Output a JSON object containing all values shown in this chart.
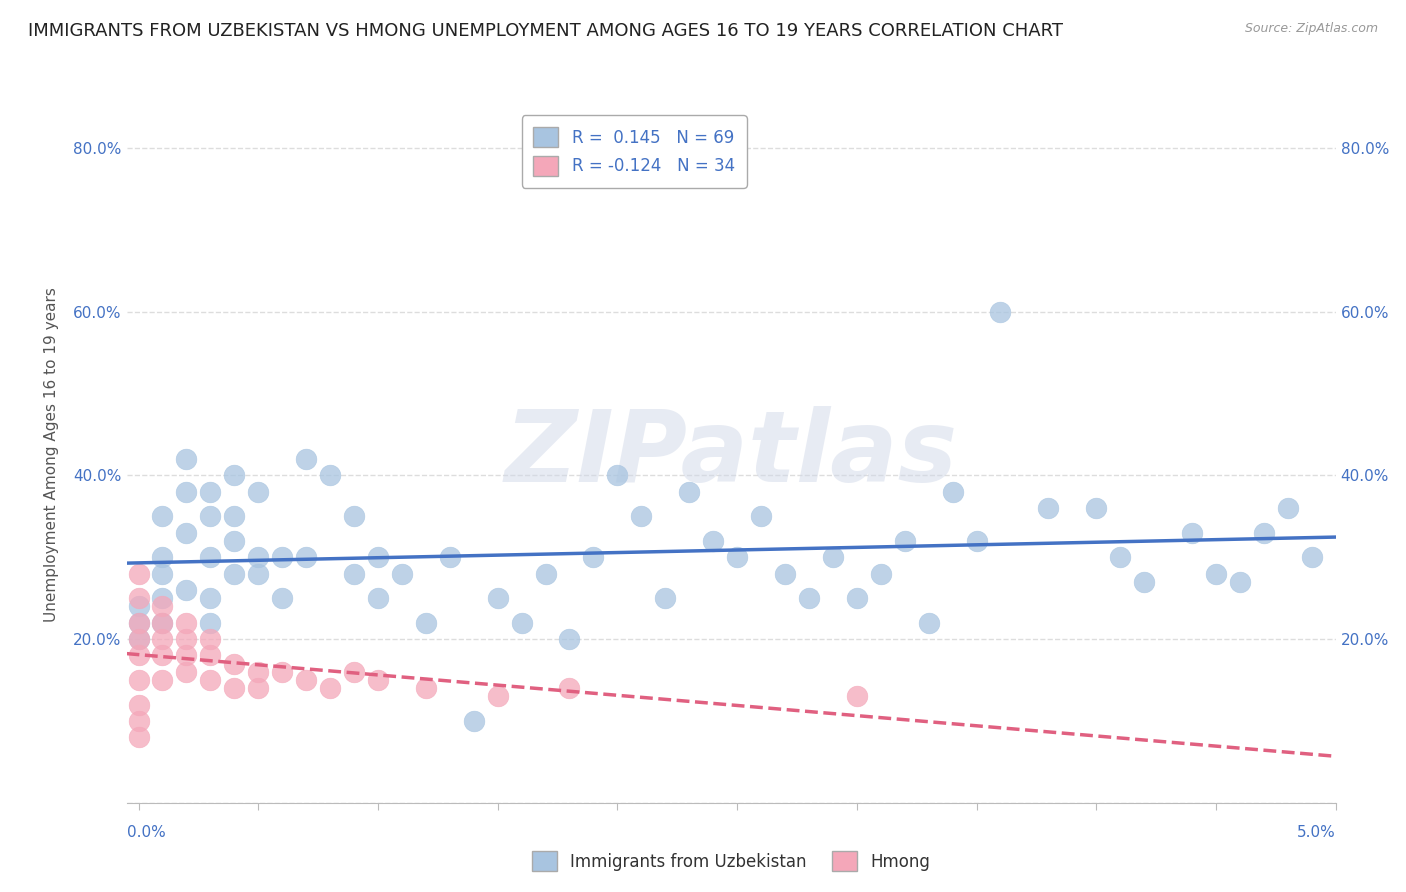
{
  "title": "IMMIGRANTS FROM UZBEKISTAN VS HMONG UNEMPLOYMENT AMONG AGES 16 TO 19 YEARS CORRELATION CHART",
  "source": "Source: ZipAtlas.com",
  "ylabel": "Unemployment Among Ages 16 to 19 years",
  "series": [
    {
      "label": "Immigrants from Uzbekistan",
      "R": 0.145,
      "N": 69,
      "color": "#a8c4e0",
      "line_color": "#4472c4",
      "x": [
        0.001,
        0.001,
        0.001,
        0.001,
        0.002,
        0.002,
        0.002,
        0.003,
        0.003,
        0.003,
        0.003,
        0.004,
        0.004,
        0.004,
        0.004,
        0.005,
        0.005,
        0.005,
        0.006,
        0.006,
        0.007,
        0.007,
        0.008,
        0.009,
        0.009,
        0.01,
        0.01,
        0.011,
        0.012,
        0.013,
        0.014,
        0.015,
        0.016,
        0.017,
        0.018,
        0.019,
        0.02,
        0.021,
        0.022,
        0.023,
        0.024,
        0.025,
        0.026,
        0.027,
        0.028,
        0.029,
        0.03,
        0.031,
        0.032,
        0.033,
        0.034,
        0.035,
        0.036,
        0.038,
        0.04,
        0.041,
        0.042,
        0.044,
        0.045,
        0.046,
        0.047,
        0.048,
        0.049,
        0.0,
        0.0,
        0.0,
        0.001,
        0.002,
        0.003
      ],
      "y": [
        0.25,
        0.3,
        0.28,
        0.35,
        0.38,
        0.42,
        0.33,
        0.3,
        0.35,
        0.38,
        0.25,
        0.28,
        0.32,
        0.4,
        0.35,
        0.3,
        0.28,
        0.38,
        0.3,
        0.25,
        0.42,
        0.3,
        0.4,
        0.35,
        0.28,
        0.25,
        0.3,
        0.28,
        0.22,
        0.3,
        0.1,
        0.25,
        0.22,
        0.28,
        0.2,
        0.3,
        0.4,
        0.35,
        0.25,
        0.38,
        0.32,
        0.3,
        0.35,
        0.28,
        0.25,
        0.3,
        0.25,
        0.28,
        0.32,
        0.22,
        0.38,
        0.32,
        0.6,
        0.36,
        0.36,
        0.3,
        0.27,
        0.33,
        0.28,
        0.27,
        0.33,
        0.36,
        0.3,
        0.22,
        0.24,
        0.2,
        0.22,
        0.26,
        0.22
      ]
    },
    {
      "label": "Hmong",
      "R": -0.124,
      "N": 34,
      "color": "#f4a7b9",
      "line_color": "#e06080",
      "x": [
        0.0,
        0.0,
        0.0,
        0.0,
        0.0,
        0.0,
        0.0,
        0.0,
        0.0,
        0.001,
        0.001,
        0.001,
        0.001,
        0.001,
        0.002,
        0.002,
        0.002,
        0.002,
        0.003,
        0.003,
        0.003,
        0.004,
        0.004,
        0.005,
        0.005,
        0.006,
        0.007,
        0.008,
        0.009,
        0.01,
        0.012,
        0.015,
        0.018,
        0.03
      ],
      "y": [
        0.25,
        0.2,
        0.22,
        0.18,
        0.15,
        0.28,
        0.1,
        0.12,
        0.08,
        0.24,
        0.2,
        0.18,
        0.15,
        0.22,
        0.2,
        0.16,
        0.22,
        0.18,
        0.18,
        0.15,
        0.2,
        0.14,
        0.17,
        0.14,
        0.16,
        0.16,
        0.15,
        0.14,
        0.16,
        0.15,
        0.14,
        0.13,
        0.14,
        0.13
      ]
    }
  ],
  "ylim": [
    0.0,
    0.85
  ],
  "xlim": [
    -0.0005,
    0.05
  ],
  "yticks": [
    0.0,
    0.2,
    0.4,
    0.6,
    0.8
  ],
  "ytick_labels": [
    "",
    "20.0%",
    "40.0%",
    "60.0%",
    "80.0%"
  ],
  "xtick_positions": [
    0.0,
    0.005,
    0.01,
    0.015,
    0.02,
    0.025,
    0.03,
    0.035,
    0.04,
    0.045,
    0.05
  ],
  "watermark_text": "ZIPatlas",
  "background_color": "#ffffff",
  "grid_color": "#dddddd",
  "title_fontsize": 13,
  "axis_label_fontsize": 11,
  "tick_fontsize": 11,
  "legend_R_color": "#4472c4",
  "tick_color": "#4472c4"
}
